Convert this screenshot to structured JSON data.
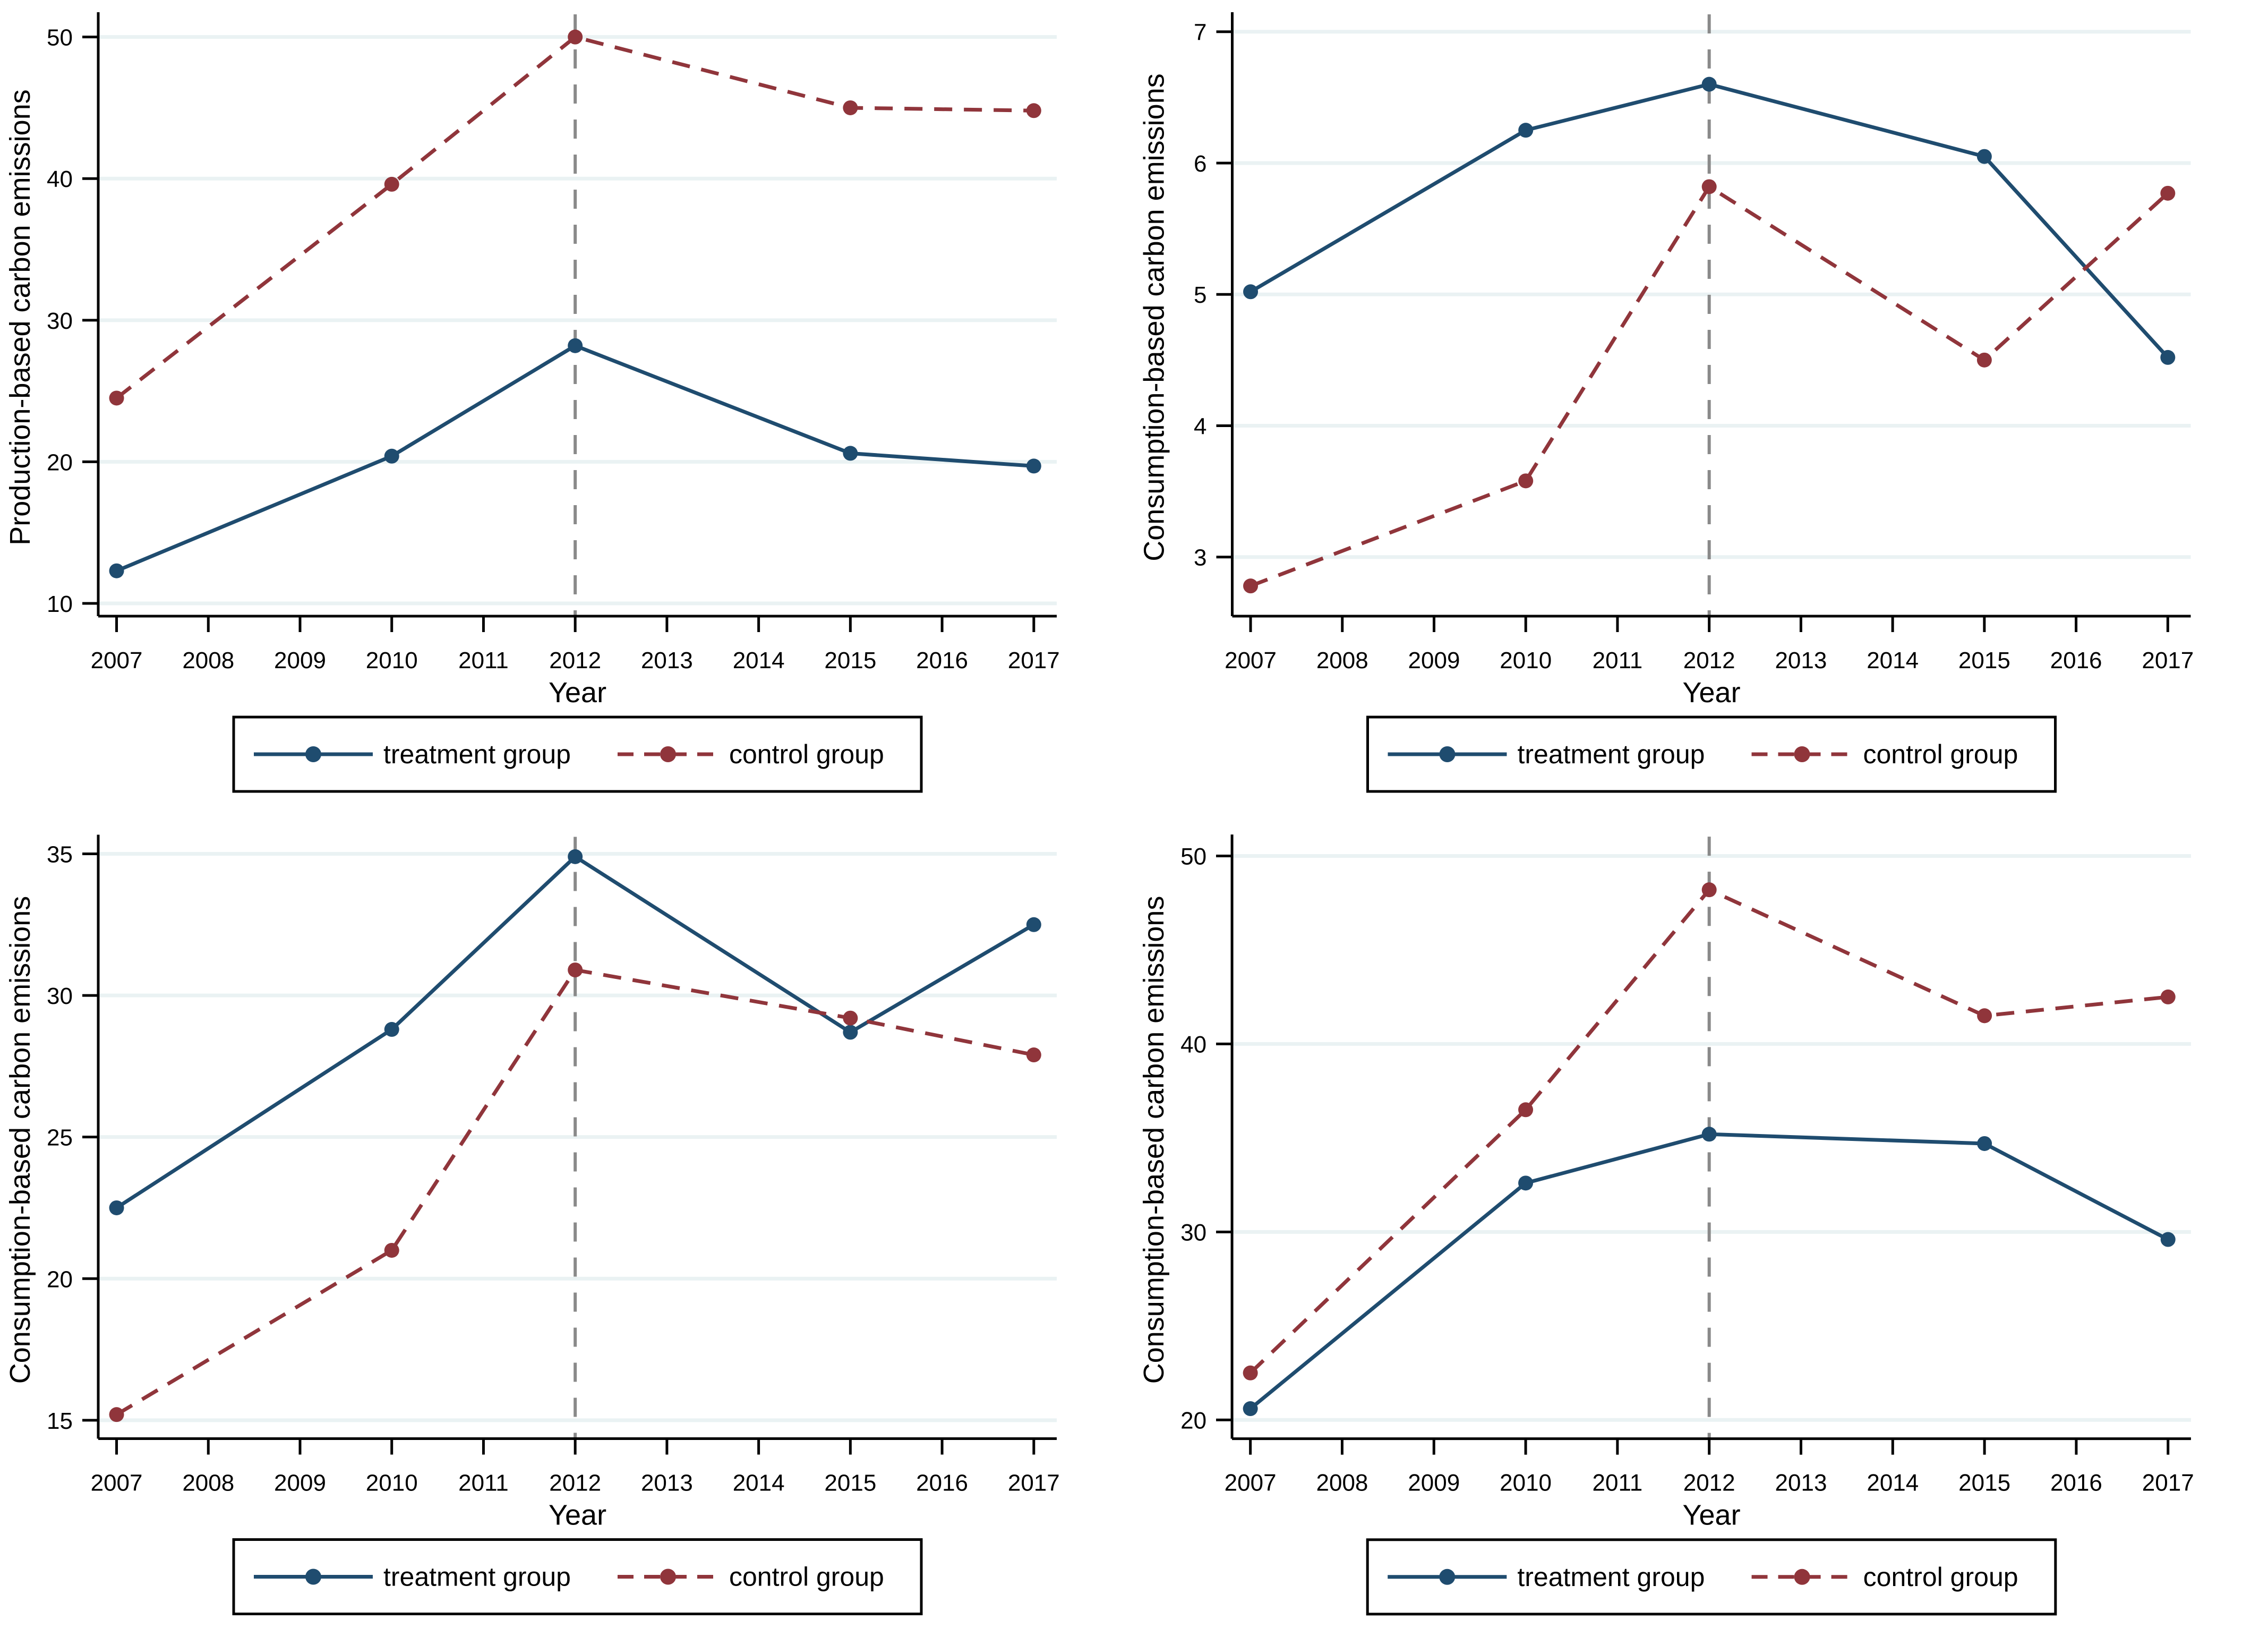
{
  "page": {
    "background": "#ffffff"
  },
  "styles": {
    "treatment_color": "#1f4c6f",
    "control_color": "#90353b",
    "grid_color": "#eaf2f3",
    "vline_color": "#8a8a8a",
    "axis_color": "#000000",
    "text_color": "#000000",
    "legend_border_color": "#000000",
    "control_dash": "34 22",
    "legend_control_dash": "30 20",
    "vline_dash": "36 30"
  },
  "legend": {
    "entries": [
      {
        "label": "treatment group",
        "series": "treatment",
        "style": "solid"
      },
      {
        "label": "control group",
        "series": "control",
        "style": "dashed"
      }
    ]
  },
  "chart_data": [
    {
      "id": "top-left",
      "type": "line",
      "title": "",
      "xlabel": "Year",
      "ylabel": "Production-based carbon emissions",
      "x": [
        2007,
        2010,
        2012,
        2015,
        2017
      ],
      "xticks": [
        2007,
        2008,
        2009,
        2010,
        2011,
        2012,
        2013,
        2014,
        2015,
        2016,
        2017
      ],
      "yticks": [
        10,
        20,
        30,
        40,
        50
      ],
      "xlim": [
        2006.8,
        2017.25
      ],
      "ylim": [
        9.1,
        51.3
      ],
      "vline_x": 2012,
      "grid": true,
      "legend_position": "bottom-center",
      "series": [
        {
          "name": "treatment group",
          "key": "treatment",
          "style": "solid",
          "values": [
            12.3,
            20.4,
            28.2,
            20.6,
            19.7
          ]
        },
        {
          "name": "control group",
          "key": "control",
          "style": "dashed",
          "values": [
            24.5,
            39.6,
            50.0,
            45.0,
            44.8
          ]
        }
      ]
    },
    {
      "id": "top-right",
      "type": "line",
      "title": "",
      "xlabel": "Year",
      "ylabel": "Consumption-based carbon emissions",
      "x": [
        2007,
        2010,
        2012,
        2015,
        2017
      ],
      "xticks": [
        2007,
        2008,
        2009,
        2010,
        2011,
        2012,
        2013,
        2014,
        2015,
        2016,
        2017
      ],
      "yticks": [
        3,
        4,
        5,
        6,
        7
      ],
      "xlim": [
        2006.8,
        2017.25
      ],
      "ylim": [
        2.55,
        7.1
      ],
      "vline_x": 2012,
      "grid": true,
      "legend_position": "bottom-center",
      "series": [
        {
          "name": "treatment group",
          "key": "treatment",
          "style": "solid",
          "values": [
            5.02,
            6.25,
            6.6,
            6.05,
            4.52
          ]
        },
        {
          "name": "control group",
          "key": "control",
          "style": "dashed",
          "values": [
            2.78,
            3.58,
            5.82,
            4.5,
            5.77
          ]
        }
      ]
    },
    {
      "id": "bottom-left",
      "type": "line",
      "title": "",
      "xlabel": "Year",
      "ylabel": "Consumption-based carbon emissions",
      "x": [
        2007,
        2010,
        2012,
        2015,
        2017
      ],
      "xticks": [
        2007,
        2008,
        2009,
        2010,
        2011,
        2012,
        2013,
        2014,
        2015,
        2016,
        2017
      ],
      "yticks": [
        15,
        20,
        25,
        30,
        35
      ],
      "xlim": [
        2006.8,
        2017.25
      ],
      "ylim": [
        14.35,
        35.45
      ],
      "vline_x": 2012,
      "grid": true,
      "legend_position": "bottom-center",
      "series": [
        {
          "name": "treatment group",
          "key": "treatment",
          "style": "solid",
          "values": [
            22.5,
            28.8,
            34.9,
            28.7,
            32.5
          ]
        },
        {
          "name": "control group",
          "key": "control",
          "style": "dashed",
          "values": [
            15.2,
            21.0,
            30.9,
            29.2,
            27.9
          ]
        }
      ]
    },
    {
      "id": "bottom-right",
      "type": "line",
      "title": "",
      "xlabel": "Year",
      "ylabel": "Consumption-based carbon emissions",
      "x": [
        2007,
        2010,
        2012,
        2015,
        2017
      ],
      "xticks": [
        2007,
        2008,
        2009,
        2010,
        2011,
        2012,
        2013,
        2014,
        2015,
        2016,
        2017
      ],
      "yticks": [
        20,
        30,
        40,
        50
      ],
      "xlim": [
        2006.8,
        2017.25
      ],
      "ylim": [
        19.0,
        50.8
      ],
      "vline_x": 2012,
      "grid": true,
      "legend_position": "bottom-center",
      "series": [
        {
          "name": "treatment group",
          "key": "treatment",
          "style": "solid",
          "values": [
            20.6,
            32.6,
            35.2,
            34.7,
            29.6
          ]
        },
        {
          "name": "control group",
          "key": "control",
          "style": "dashed",
          "values": [
            22.5,
            36.5,
            48.2,
            41.5,
            42.5
          ]
        }
      ]
    }
  ]
}
